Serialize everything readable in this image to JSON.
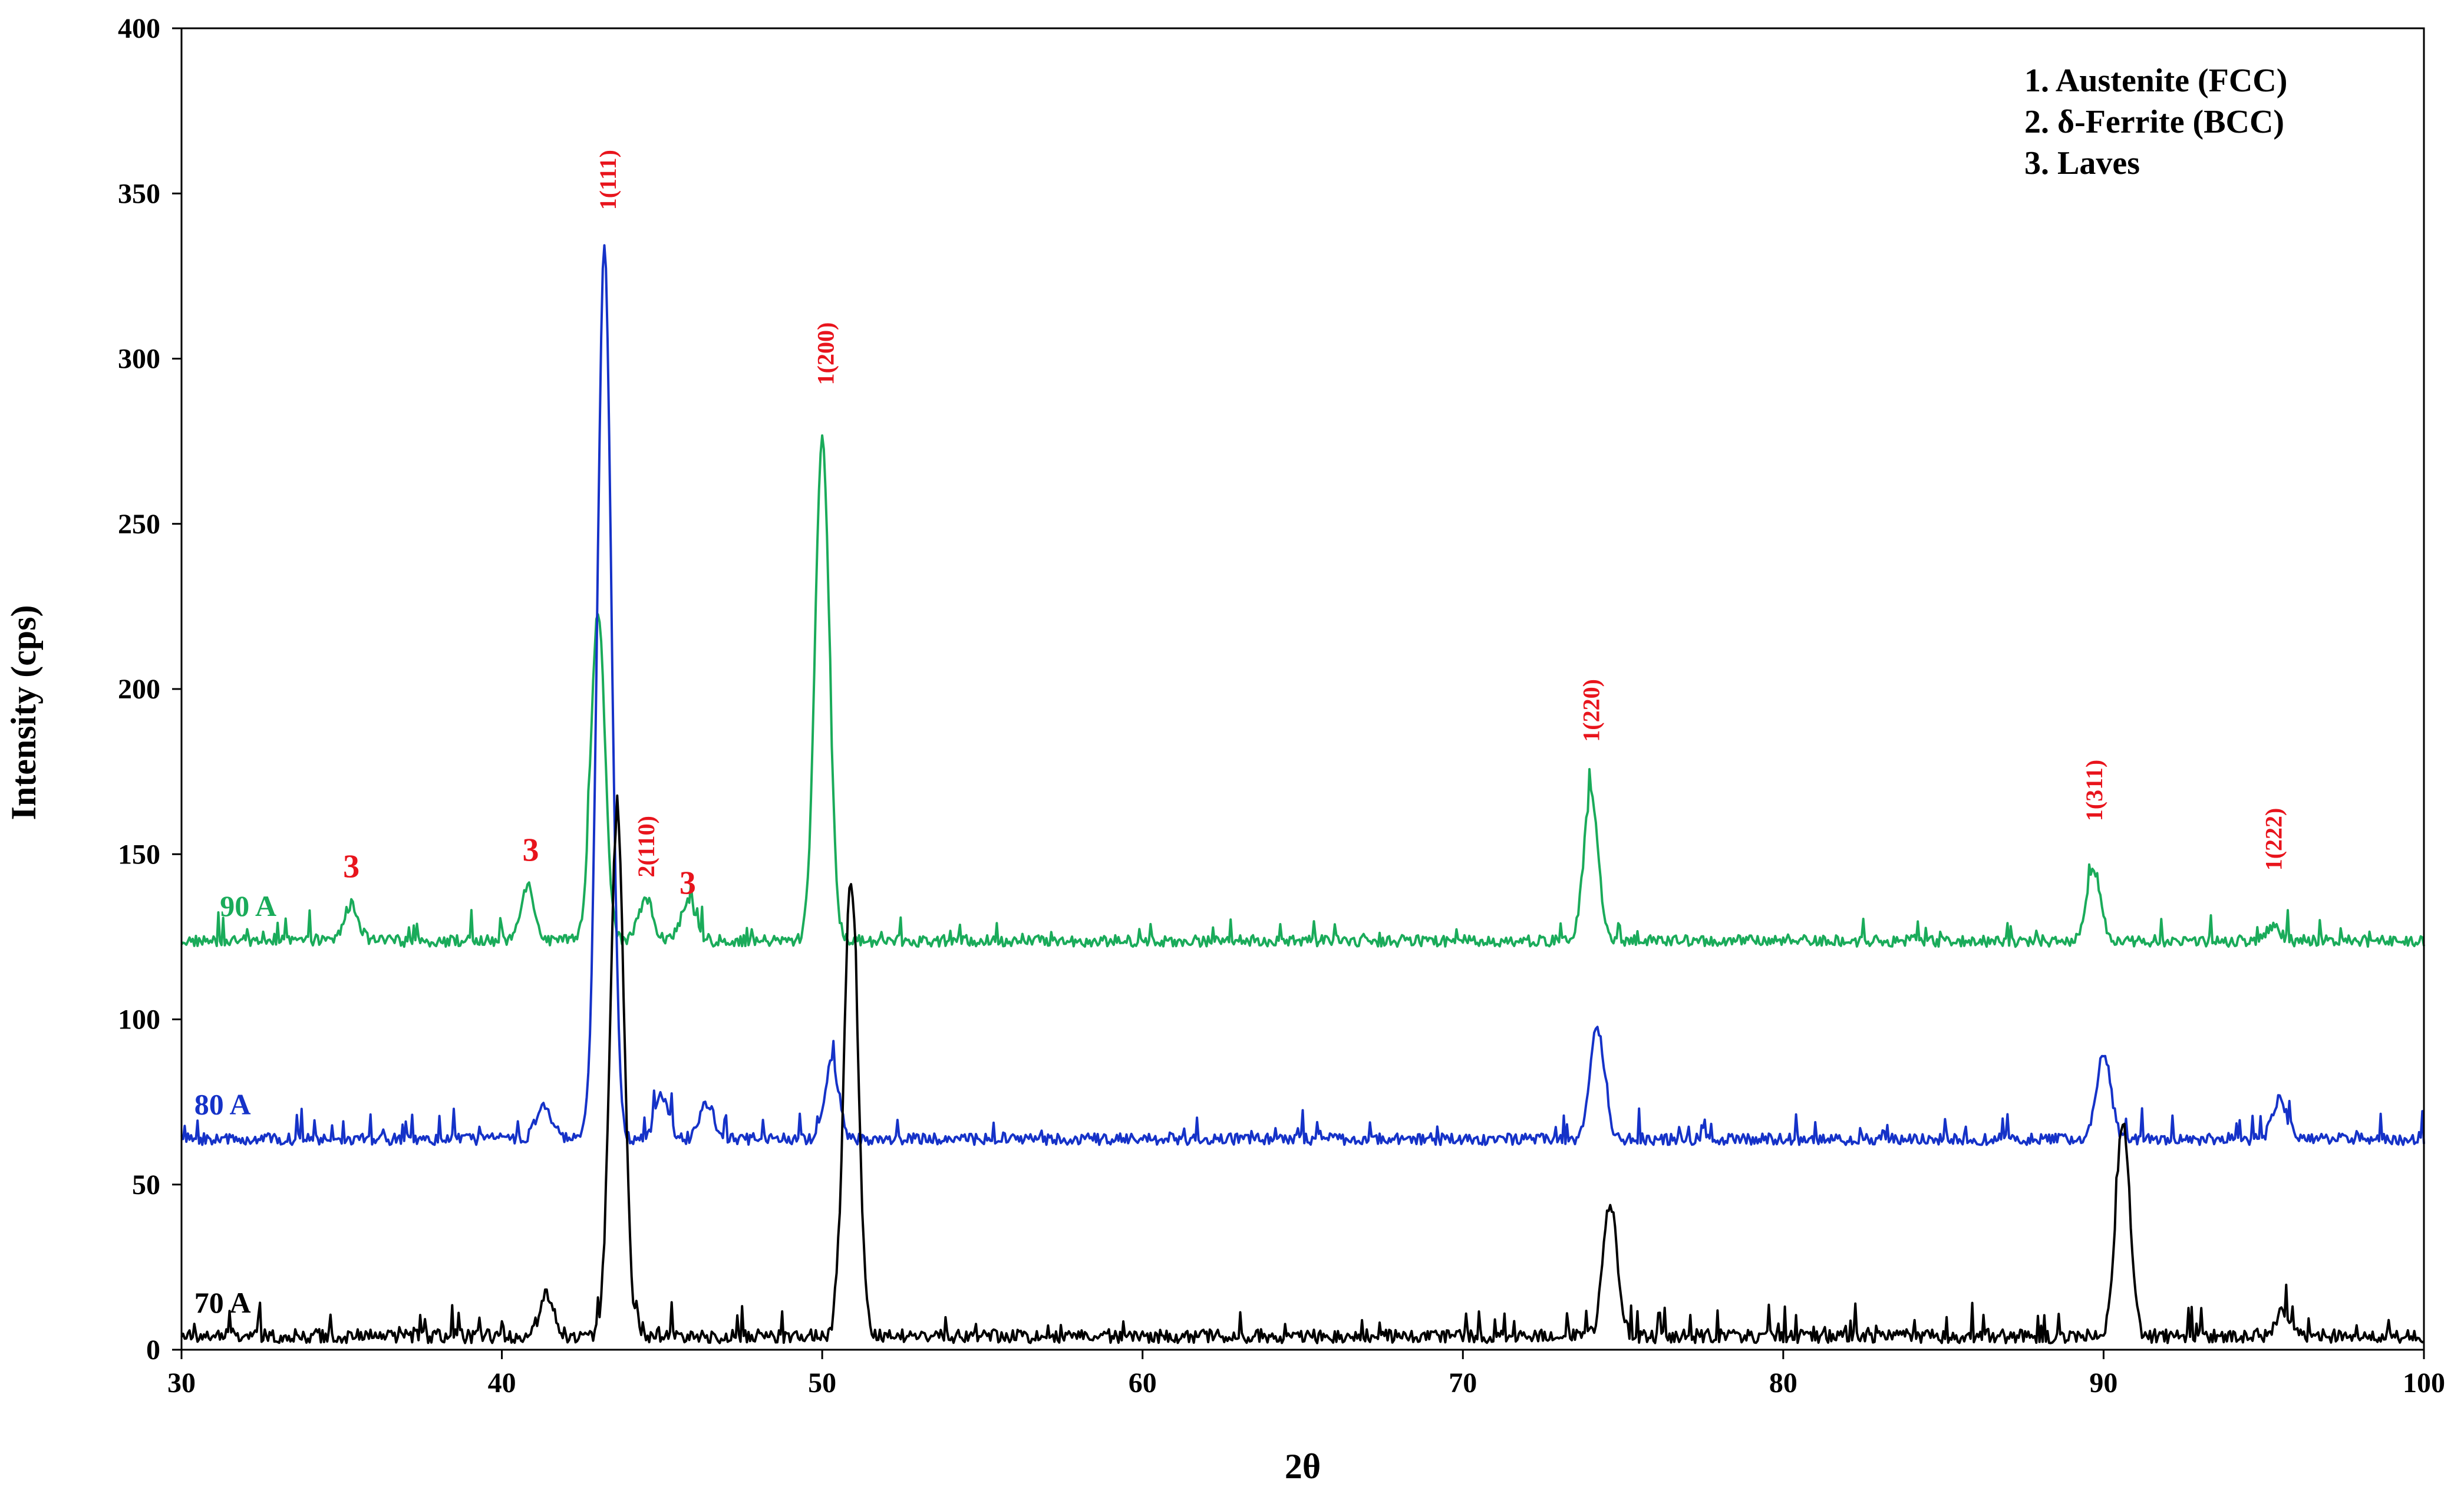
{
  "chart_data": {
    "type": "line",
    "xlabel": "2θ",
    "ylabel": "Intensity (cps)",
    "xlim": [
      30,
      100
    ],
    "ylim": [
      0,
      400
    ],
    "x_ticks": [
      "30",
      "40",
      "50",
      "60",
      "70",
      "80",
      "90",
      "100"
    ],
    "y_ticks": [
      "0",
      "50",
      "100",
      "150",
      "200",
      "250",
      "300",
      "350",
      "400"
    ],
    "grid": false,
    "legend_position": "top-right",
    "legend": [
      "1. Austenite (FCC)",
      "2. δ-Ferrite (BCC)",
      "3. Laves"
    ],
    "series": [
      {
        "name": "90 A",
        "color": "#1aab5a",
        "baseline": 122,
        "noise": 5,
        "peaks": [
          {
            "x": 35.3,
            "y": 133
          },
          {
            "x": 40.8,
            "y": 139
          },
          {
            "x": 43.0,
            "y": 221
          },
          {
            "x": 44.5,
            "y": 135
          },
          {
            "x": 45.8,
            "y": 134
          },
          {
            "x": 50.0,
            "y": 275
          },
          {
            "x": 74.0,
            "y": 167
          },
          {
            "x": 89.7,
            "y": 143
          },
          {
            "x": 95.3,
            "y": 126
          }
        ]
      },
      {
        "name": "80 A",
        "color": "#1532c8",
        "baseline": 62,
        "noise": 5,
        "peaks": [
          {
            "x": 41.3,
            "y": 73
          },
          {
            "x": 43.2,
            "y": 331
          },
          {
            "x": 45.0,
            "y": 75
          },
          {
            "x": 46.4,
            "y": 73
          },
          {
            "x": 50.3,
            "y": 85
          },
          {
            "x": 74.2,
            "y": 96
          },
          {
            "x": 90.0,
            "y": 88
          },
          {
            "x": 95.5,
            "y": 74
          }
        ]
      },
      {
        "name": "70 A",
        "color": "#000000",
        "baseline": 2,
        "noise": 6,
        "peaks": [
          {
            "x": 41.4,
            "y": 15
          },
          {
            "x": 43.6,
            "y": 160
          },
          {
            "x": 50.9,
            "y": 140
          },
          {
            "x": 74.6,
            "y": 42
          },
          {
            "x": 90.6,
            "y": 67
          },
          {
            "x": 95.6,
            "y": 10
          }
        ]
      }
    ],
    "annotations": [
      {
        "text": "1(111)",
        "x": 43.3,
        "y": 345,
        "rotate": true
      },
      {
        "text": "1(200)",
        "x": 50.1,
        "y": 292,
        "rotate": true
      },
      {
        "text": "1(220)",
        "x": 74.0,
        "y": 184,
        "rotate": true
      },
      {
        "text": "1(311)",
        "x": 89.7,
        "y": 160,
        "rotate": true
      },
      {
        "text": "1(222)",
        "x": 95.3,
        "y": 145,
        "rotate": true
      },
      {
        "text": "2(110)",
        "x": 44.5,
        "y": 143,
        "rotate": true
      },
      {
        "text": "3",
        "x": 35.3,
        "y": 143,
        "rotate": false
      },
      {
        "text": "3",
        "x": 40.9,
        "y": 148,
        "rotate": false
      },
      {
        "text": "3",
        "x": 45.8,
        "y": 138,
        "rotate": false
      }
    ]
  }
}
